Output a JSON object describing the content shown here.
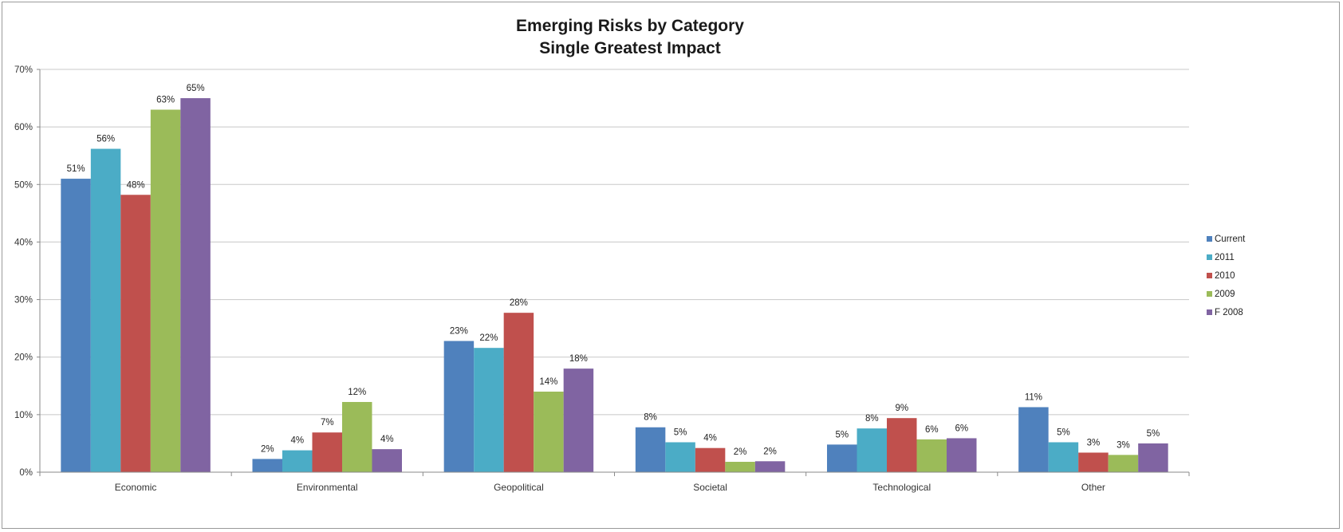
{
  "chart_data": {
    "type": "bar",
    "title": "Emerging Risks by Category",
    "subtitle": "Single Greatest Impact",
    "categories": [
      "Economic",
      "Environmental",
      "Geopolitical",
      "Societal",
      "Technological",
      "Other"
    ],
    "series": [
      {
        "name": "Current",
        "color": "#4F81BD",
        "values": [
          51,
          2,
          23,
          8,
          5,
          11
        ],
        "display_values": [
          51,
          2.3,
          22.8,
          7.8,
          4.8,
          11.3
        ]
      },
      {
        "name": "2011",
        "color": "#4BACC6",
        "values": [
          56,
          4,
          22,
          5,
          8,
          5
        ],
        "display_values": [
          56.2,
          3.8,
          21.6,
          5.2,
          7.6,
          5.2
        ]
      },
      {
        "name": "2010",
        "color": "#C0504D",
        "values": [
          48,
          7,
          28,
          4,
          9,
          3
        ],
        "display_values": [
          48.2,
          6.9,
          27.7,
          4.2,
          9.4,
          3.4
        ]
      },
      {
        "name": "2009",
        "color": "#9BBB59",
        "values": [
          63,
          12,
          14,
          2,
          6,
          3
        ],
        "display_values": [
          63,
          12.2,
          14,
          1.8,
          5.7,
          3
        ]
      },
      {
        "name": "F 2008",
        "color": "#8064A2",
        "values": [
          65,
          4,
          18,
          2,
          6,
          5
        ],
        "display_values": [
          65,
          4,
          18,
          1.9,
          5.9,
          5
        ]
      }
    ],
    "y_ticks": [
      "0%",
      "10%",
      "20%",
      "30%",
      "40%",
      "50%",
      "60%",
      "70%"
    ],
    "ylim": [
      0,
      70
    ],
    "y_unit": "%",
    "grid": true,
    "legend_position": "right"
  }
}
